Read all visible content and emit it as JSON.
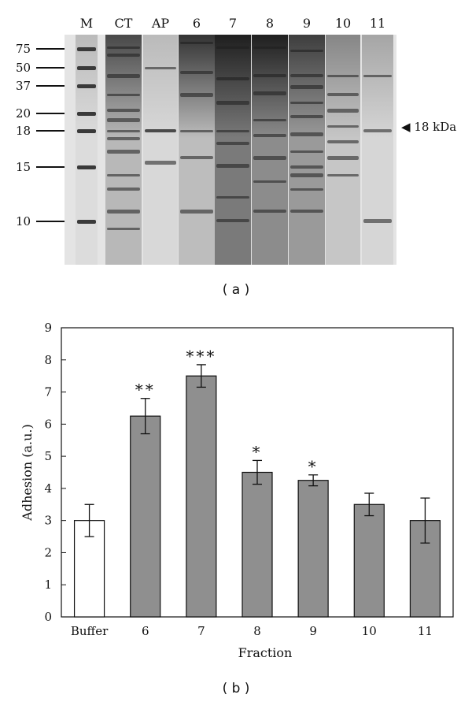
{
  "panel_a": {
    "label": "( a )",
    "lanes": [
      "M",
      "CT",
      "AP",
      "6",
      "7",
      "8",
      "9",
      "10",
      "11"
    ],
    "markers": [
      "75",
      "50",
      "37",
      "20",
      "18",
      "15",
      "10"
    ],
    "annotation_arrow": "◀",
    "annotation_text": "18 kDa"
  },
  "panel_b": {
    "label": "( b )"
  },
  "chart_data": {
    "type": "bar",
    "categories": [
      "Buffer",
      "6",
      "7",
      "8",
      "9",
      "10",
      "11"
    ],
    "values": [
      3.0,
      6.25,
      7.5,
      4.5,
      4.25,
      3.5,
      3.0
    ],
    "errors": [
      0.5,
      0.55,
      0.35,
      0.37,
      0.17,
      0.35,
      0.7
    ],
    "significance": [
      "",
      "**",
      "***",
      "*",
      "*",
      "",
      ""
    ],
    "bar_colors": [
      "#ffffff",
      "#8f8f8f",
      "#8f8f8f",
      "#8f8f8f",
      "#8f8f8f",
      "#8f8f8f",
      "#8f8f8f"
    ],
    "xlabel": "Fraction",
    "ylabel": "Adhesion (a.u.)",
    "ylim": [
      0,
      9
    ],
    "yticks": [
      0,
      1,
      2,
      3,
      4,
      5,
      6,
      7,
      8,
      9
    ],
    "grid": false
  }
}
